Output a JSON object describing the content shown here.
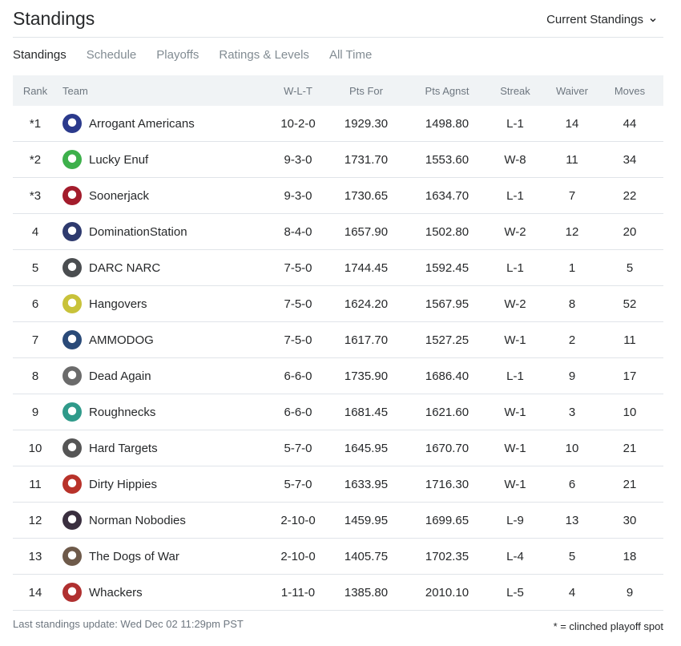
{
  "header": {
    "title": "Standings",
    "view_select": "Current Standings"
  },
  "tabs": [
    {
      "label": "Standings",
      "active": true
    },
    {
      "label": "Schedule",
      "active": false
    },
    {
      "label": "Playoffs",
      "active": false
    },
    {
      "label": "Ratings & Levels",
      "active": false
    },
    {
      "label": "All Time",
      "active": false
    }
  ],
  "table": {
    "columns": {
      "rank": "Rank",
      "team": "Team",
      "wlt": "W-L-T",
      "pts_for": "Pts For",
      "pts_agnst": "Pts Agnst",
      "streak": "Streak",
      "waiver": "Waiver",
      "moves": "Moves"
    },
    "rows": [
      {
        "rank": "*1",
        "team": "Arrogant Americans",
        "wlt": "10-2-0",
        "pts_for": "1929.30",
        "pts_agnst": "1498.80",
        "streak": "L-1",
        "waiver": "14",
        "moves": "44",
        "logo_color": "#2b3a8c"
      },
      {
        "rank": "*2",
        "team": "Lucky Enuf",
        "wlt": "9-3-0",
        "pts_for": "1731.70",
        "pts_agnst": "1553.60",
        "streak": "W-8",
        "waiver": "11",
        "moves": "34",
        "logo_color": "#3db04b"
      },
      {
        "rank": "*3",
        "team": "Soonerjack",
        "wlt": "9-3-0",
        "pts_for": "1730.65",
        "pts_agnst": "1634.70",
        "streak": "L-1",
        "waiver": "7",
        "moves": "22",
        "logo_color": "#a31c2c"
      },
      {
        "rank": "4",
        "team": "DominationStation",
        "wlt": "8-4-0",
        "pts_for": "1657.90",
        "pts_agnst": "1502.80",
        "streak": "W-2",
        "waiver": "12",
        "moves": "20",
        "logo_color": "#2e3a6e"
      },
      {
        "rank": "5",
        "team": "DARC NARC",
        "wlt": "7-5-0",
        "pts_for": "1744.45",
        "pts_agnst": "1592.45",
        "streak": "L-1",
        "waiver": "1",
        "moves": "5",
        "logo_color": "#4a4d50"
      },
      {
        "rank": "6",
        "team": "Hangovers",
        "wlt": "7-5-0",
        "pts_for": "1624.20",
        "pts_agnst": "1567.95",
        "streak": "W-2",
        "waiver": "8",
        "moves": "52",
        "logo_color": "#c8c23a"
      },
      {
        "rank": "7",
        "team": "AMMODOG",
        "wlt": "7-5-0",
        "pts_for": "1617.70",
        "pts_agnst": "1527.25",
        "streak": "W-1",
        "waiver": "2",
        "moves": "11",
        "logo_color": "#2a4a78"
      },
      {
        "rank": "8",
        "team": "Dead Again",
        "wlt": "6-6-0",
        "pts_for": "1735.90",
        "pts_agnst": "1686.40",
        "streak": "L-1",
        "waiver": "9",
        "moves": "17",
        "logo_color": "#6b6b6b"
      },
      {
        "rank": "9",
        "team": "Roughnecks",
        "wlt": "6-6-0",
        "pts_for": "1681.45",
        "pts_agnst": "1621.60",
        "streak": "W-1",
        "waiver": "3",
        "moves": "10",
        "logo_color": "#2f9a8a"
      },
      {
        "rank": "10",
        "team": "Hard Targets",
        "wlt": "5-7-0",
        "pts_for": "1645.95",
        "pts_agnst": "1670.70",
        "streak": "W-1",
        "waiver": "10",
        "moves": "21",
        "logo_color": "#555555"
      },
      {
        "rank": "11",
        "team": "Dirty Hippies",
        "wlt": "5-7-0",
        "pts_for": "1633.95",
        "pts_agnst": "1716.30",
        "streak": "W-1",
        "waiver": "6",
        "moves": "21",
        "logo_color": "#b8322a"
      },
      {
        "rank": "12",
        "team": "Norman Nobodies",
        "wlt": "2-10-0",
        "pts_for": "1459.95",
        "pts_agnst": "1699.65",
        "streak": "L-9",
        "waiver": "13",
        "moves": "30",
        "logo_color": "#3a2f3f"
      },
      {
        "rank": "13",
        "team": "The Dogs of War",
        "wlt": "2-10-0",
        "pts_for": "1405.75",
        "pts_agnst": "1702.35",
        "streak": "L-4",
        "waiver": "5",
        "moves": "18",
        "logo_color": "#6e5a4a"
      },
      {
        "rank": "14",
        "team": "Whackers",
        "wlt": "1-11-0",
        "pts_for": "1385.80",
        "pts_agnst": "2010.10",
        "streak": "L-5",
        "waiver": "4",
        "moves": "9",
        "logo_color": "#b03030"
      }
    ]
  },
  "footer": {
    "last_update": "Last standings update: Wed Dec 02 11:29pm PST",
    "legend": "* = clinched playoff spot"
  }
}
